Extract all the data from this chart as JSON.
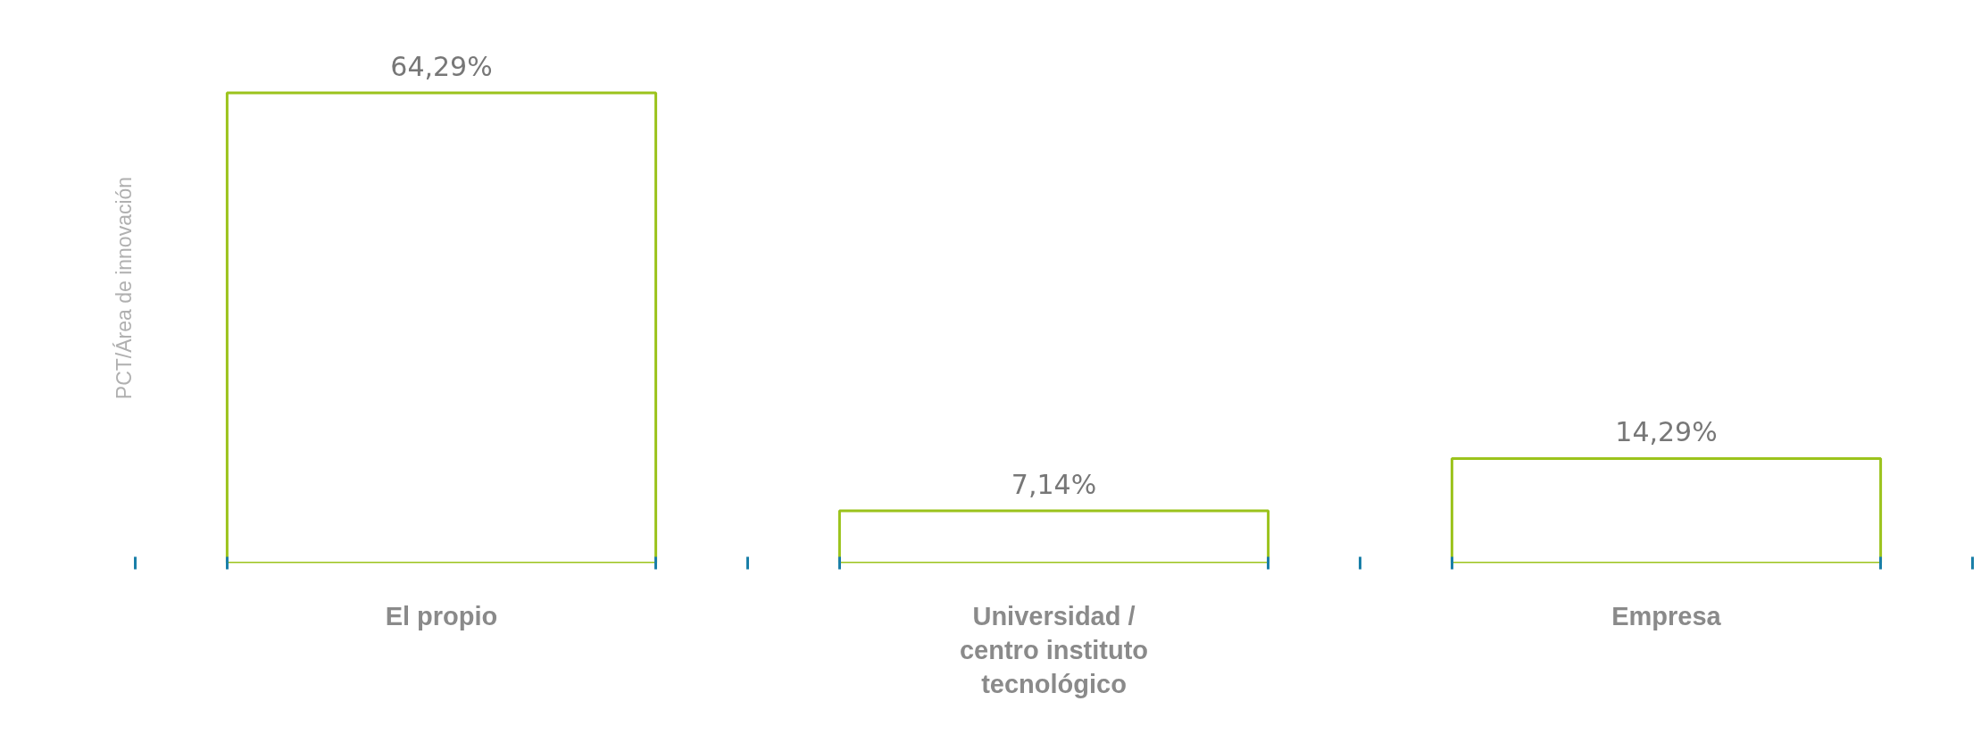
{
  "chart_data": {
    "type": "bar",
    "ylabel": "PCT/Área de innovación",
    "categories": [
      "El propio",
      "Universidad / centro instituto tecnológico",
      "Empresa"
    ],
    "values": [
      64.29,
      7.14,
      14.29
    ],
    "value_labels": [
      "64,29%",
      "7,14%",
      "14,29%"
    ],
    "color": "#9bc31c",
    "grid": false
  }
}
